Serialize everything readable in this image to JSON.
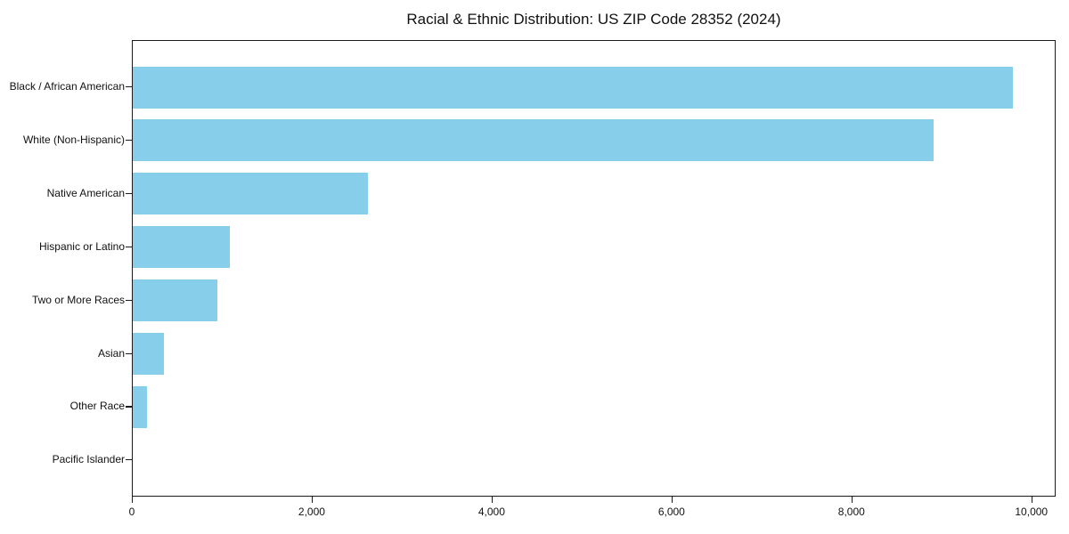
{
  "chart_data": {
    "type": "bar",
    "orientation": "horizontal",
    "title": "Racial & Ethnic Distribution: US ZIP Code 28352 (2024)",
    "categories": [
      "Black / African American",
      "White (Non-Hispanic)",
      "Native American",
      "Hispanic or Latino",
      "Two or More Races",
      "Asian",
      "Other Race",
      "Pacific Islander"
    ],
    "values": [
      9780,
      8900,
      2610,
      1080,
      940,
      350,
      160,
      0
    ],
    "xlabel": "",
    "ylabel": "",
    "xlim": [
      0,
      10270
    ],
    "x_ticks": [
      0,
      2000,
      4000,
      6000,
      8000,
      10000
    ],
    "x_tick_labels": [
      "0",
      "2,000",
      "4,000",
      "6,000",
      "8,000",
      "10,000"
    ],
    "bar_color": "#87CEEB",
    "axis_color": "#1a1a1a",
    "text_color": "#111111",
    "background": "#ffffff",
    "grid": false,
    "legend": "none"
  }
}
